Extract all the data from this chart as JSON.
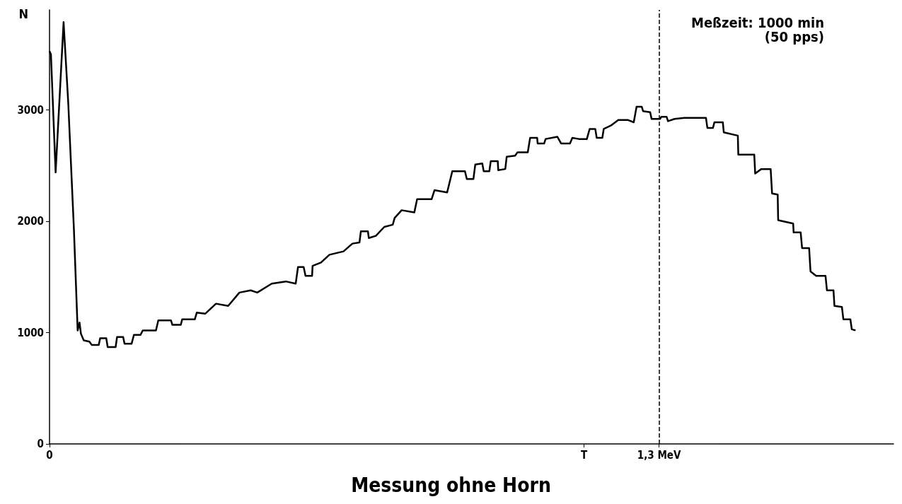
{
  "chart_data": {
    "type": "line",
    "title": "Messung ohne Horn",
    "ylabel": "N",
    "annotations": [
      "Meßzeit: 1000 min\n(50 pps)"
    ],
    "x": [
      0,
      0.003,
      0.013,
      0.03,
      0.04,
      0.052,
      0.06,
      0.064,
      0.067,
      0.073,
      0.085,
      0.09,
      0.105,
      0.108,
      0.121,
      0.124,
      0.141,
      0.144,
      0.157,
      0.16,
      0.175,
      0.18,
      0.194,
      0.199,
      0.227,
      0.232,
      0.259,
      0.262,
      0.28,
      0.283,
      0.31,
      0.314,
      0.332,
      0.355,
      0.381,
      0.405,
      0.429,
      0.443,
      0.474,
      0.504,
      0.525,
      0.53,
      0.542,
      0.546,
      0.56,
      0.561,
      0.579,
      0.597,
      0.627,
      0.646,
      0.661,
      0.664,
      0.679,
      0.681,
      0.696,
      0.714,
      0.732,
      0.736,
      0.751,
      0.778,
      0.784,
      0.815,
      0.821,
      0.848,
      0.859,
      0.886,
      0.89,
      0.904,
      0.908,
      0.923,
      0.926,
      0.938,
      0.941,
      0.956,
      0.957,
      0.972,
      0.975,
      0.993,
      0.998,
      1.02,
      1.025,
      1.04,
      1.041,
      1.055,
      1.058,
      1.083,
      1.091,
      1.11,
      1.115,
      1.129,
      1.146,
      1.152,
      1.164,
      1.167,
      1.179,
      1.182,
      1.197,
      1.213,
      1.234,
      1.246,
      1.252,
      1.263,
      1.266,
      1.281,
      1.284,
      1.302,
      1.305,
      1.316,
      1.319,
      1.333,
      1.354,
      1.4,
      1.403,
      1.415,
      1.418,
      1.436,
      1.438,
      1.468,
      1.469,
      1.503,
      1.505,
      1.518,
      1.538,
      1.541,
      1.553,
      1.554,
      1.586,
      1.587,
      1.602,
      1.605,
      1.62,
      1.623,
      1.635,
      1.655,
      1.658,
      1.672,
      1.674,
      1.69,
      1.693,
      1.708,
      1.711,
      1.719
    ],
    "series": [
      {
        "color": "#000000",
        "values": [
          3530,
          3500,
          2440,
          3790,
          3060,
          1930,
          1020,
          1090,
          990,
          930,
          920,
          890,
          890,
          950,
          950,
          870,
          870,
          960,
          960,
          900,
          900,
          980,
          980,
          1020,
          1020,
          1110,
          1110,
          1070,
          1070,
          1120,
          1120,
          1180,
          1170,
          1260,
          1240,
          1360,
          1380,
          1360,
          1440,
          1460,
          1440,
          1590,
          1590,
          1510,
          1510,
          1600,
          1630,
          1700,
          1730,
          1800,
          1810,
          1910,
          1910,
          1850,
          1870,
          1950,
          1970,
          2030,
          2100,
          2080,
          2200,
          2200,
          2280,
          2260,
          2450,
          2450,
          2380,
          2380,
          2510,
          2520,
          2450,
          2450,
          2540,
          2540,
          2460,
          2470,
          2580,
          2590,
          2620,
          2620,
          2750,
          2750,
          2700,
          2700,
          2740,
          2760,
          2700,
          2700,
          2750,
          2740,
          2740,
          2830,
          2830,
          2750,
          2750,
          2830,
          2860,
          2910,
          2910,
          2890,
          3030,
          3030,
          2990,
          2980,
          2920,
          2920,
          2940,
          2940,
          2900,
          2920,
          2930,
          2930,
          2840,
          2840,
          2890,
          2890,
          2800,
          2770,
          2600,
          2600,
          2430,
          2470,
          2470,
          2250,
          2240,
          2010,
          1980,
          1900,
          1900,
          1760,
          1760,
          1550,
          1510,
          1510,
          1380,
          1380,
          1240,
          1230,
          1120,
          1120,
          1030,
          1020
        ]
      }
    ],
    "xlim": [
      0,
      1.8
    ],
    "xticks": [
      0,
      {
        "value": 1.14,
        "label": "T"
      },
      {
        "value": 1.3,
        "label": "1,3 MeV"
      }
    ],
    "ylim": [
      0,
      3900
    ],
    "yticks": [
      0,
      1000,
      2000,
      3000
    ],
    "ref_lines": [
      {
        "axis": "x",
        "value": 1.3,
        "line_style": "dashed",
        "color": "#000000"
      }
    ],
    "grid": false,
    "marker": "none",
    "line_style": "solid"
  }
}
